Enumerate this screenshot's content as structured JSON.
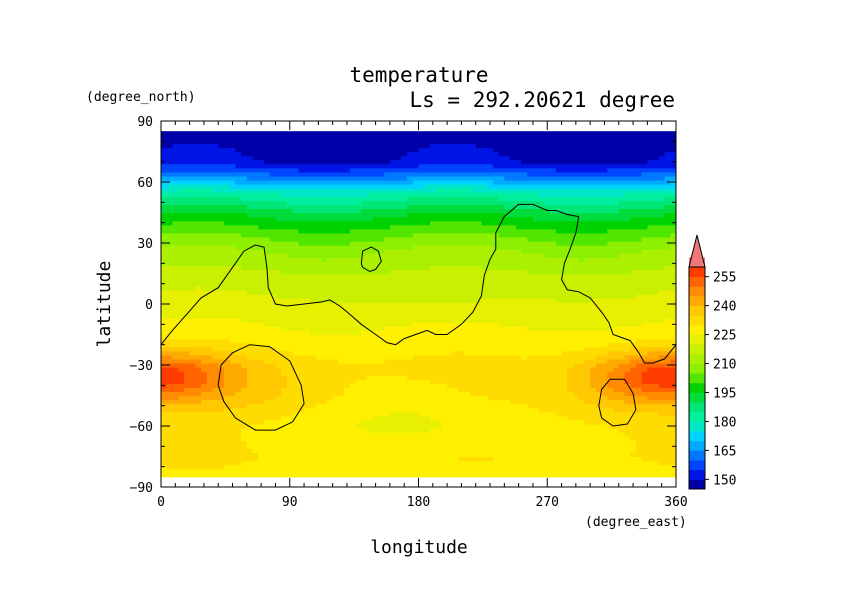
{
  "chart_data": {
    "type": "heatmap",
    "title": "temperature",
    "subtitle": "Ls = 292.20621 degree",
    "xlabel": "longitude",
    "ylabel": "latitude",
    "xunit": "(degree_east)",
    "yunit": "(degree_north)",
    "xlim": [
      0,
      360
    ],
    "ylim": [
      -90,
      90
    ],
    "x_ticks": [
      0,
      90,
      180,
      270,
      360
    ],
    "y_ticks": [
      90,
      60,
      30,
      0,
      -30,
      -60,
      -90
    ],
    "x_tick_labels": [
      "0",
      "90",
      "180",
      "270",
      "360"
    ],
    "y_tick_labels": [
      "90",
      "60",
      "30",
      "0",
      "−30",
      "−60",
      "−90"
    ],
    "data_lat_range": [
      -85,
      85
    ],
    "colorbar": {
      "levels": [
        145,
        150,
        155,
        160,
        165,
        170,
        175,
        180,
        185,
        190,
        195,
        200,
        205,
        210,
        215,
        220,
        225,
        230,
        235,
        240,
        245,
        250,
        255,
        260
      ],
      "labels": [
        "150",
        "165",
        "180",
        "195",
        "210",
        "225",
        "240",
        "255"
      ],
      "label_values": [
        150,
        165,
        180,
        195,
        210,
        225,
        240,
        255
      ],
      "colors": [
        "#0000a8",
        "#0014e6",
        "#0046ff",
        "#0078ff",
        "#00aaff",
        "#00d2ff",
        "#00e6c8",
        "#00f0a0",
        "#00e678",
        "#00dc3c",
        "#00d200",
        "#50e600",
        "#8cf000",
        "#aaf000",
        "#c8f000",
        "#e6f000",
        "#fff000",
        "#ffdc00",
        "#ffc800",
        "#ffaa00",
        "#ff8c00",
        "#ff6400",
        "#ff3c00",
        "#f07878"
      ],
      "extend": "max"
    },
    "field_model": {
      "latitudes": [
        -85,
        -75,
        -60,
        -45,
        -30,
        -15,
        0,
        15,
        25,
        35,
        45,
        55,
        62,
        70,
        85
      ],
      "temperatures": [
        228,
        230,
        228,
        231,
        231,
        226,
        222,
        216,
        211,
        203,
        193,
        180,
        164,
        150,
        146
      ],
      "hot_spots": [
        {
          "lon": 10,
          "lat": -35,
          "amp": 13,
          "dlon": 45,
          "dlat": 12
        },
        {
          "lon": 340,
          "lat": -35,
          "amp": 13,
          "dlon": 45,
          "dlat": 12
        },
        {
          "lon": 60,
          "lat": -40,
          "amp": 5,
          "dlon": 60,
          "dlat": 18
        },
        {
          "lon": 320,
          "lat": -45,
          "amp": 5,
          "dlon": 50,
          "dlat": 20
        }
      ],
      "cool_spots": [
        {
          "lon": 180,
          "lat": -55,
          "amp": 5,
          "dlon": 55,
          "dlat": 18
        },
        {
          "lon": 200,
          "lat": 5,
          "amp": 3,
          "dlon": 50,
          "dlat": 10
        }
      ]
    },
    "topo_contours": [
      [
        [
          0,
          -20
        ],
        [
          8,
          -13
        ],
        [
          18,
          -5
        ],
        [
          28,
          3
        ],
        [
          40,
          8
        ],
        [
          50,
          18
        ],
        [
          58,
          26
        ],
        [
          66,
          29
        ],
        [
          72,
          28
        ],
        [
          74,
          18
        ],
        [
          75,
          8
        ],
        [
          80,
          0
        ],
        [
          88,
          -1
        ],
        [
          100,
          0
        ],
        [
          112,
          1
        ],
        [
          118,
          2
        ],
        [
          125,
          -1
        ],
        [
          132,
          -5
        ],
        [
          140,
          -10
        ],
        [
          150,
          -15
        ],
        [
          158,
          -19
        ],
        [
          164,
          -20
        ],
        [
          170,
          -17
        ],
        [
          178,
          -15
        ],
        [
          186,
          -13
        ],
        [
          192,
          -15
        ],
        [
          200,
          -15
        ],
        [
          210,
          -10
        ],
        [
          218,
          -4
        ],
        [
          224,
          4
        ],
        [
          226,
          14
        ],
        [
          230,
          22
        ],
        [
          234,
          27
        ],
        [
          234,
          35
        ],
        [
          240,
          43
        ],
        [
          250,
          49
        ],
        [
          260,
          49
        ],
        [
          270,
          46
        ],
        [
          276,
          46
        ],
        [
          284,
          44
        ],
        [
          292,
          43
        ],
        [
          290,
          35
        ],
        [
          286,
          27
        ],
        [
          282,
          20
        ],
        [
          280,
          12
        ],
        [
          284,
          7
        ],
        [
          292,
          6
        ],
        [
          300,
          3
        ],
        [
          308,
          -4
        ],
        [
          313,
          -9
        ],
        [
          316,
          -15
        ],
        [
          320,
          -16
        ],
        [
          328,
          -18
        ],
        [
          334,
          -24
        ],
        [
          338,
          -29
        ],
        [
          344,
          -29
        ],
        [
          352,
          -27
        ],
        [
          360,
          -20
        ]
      ],
      [
        [
          140,
          20
        ],
        [
          141,
          26
        ],
        [
          147,
          28
        ],
        [
          152,
          26
        ],
        [
          154,
          21
        ],
        [
          150,
          17
        ],
        [
          146,
          16
        ],
        [
          141,
          18
        ],
        [
          140,
          20
        ]
      ],
      [
        [
          40,
          -40
        ],
        [
          42,
          -30
        ],
        [
          50,
          -24
        ],
        [
          62,
          -20
        ],
        [
          76,
          -21
        ],
        [
          90,
          -28
        ],
        [
          98,
          -40
        ],
        [
          100,
          -49
        ],
        [
          92,
          -58
        ],
        [
          80,
          -62
        ],
        [
          66,
          -62
        ],
        [
          52,
          -56
        ],
        [
          44,
          -48
        ],
        [
          40,
          -40
        ]
      ],
      [
        [
          306,
          -50
        ],
        [
          308,
          -42
        ],
        [
          314,
          -37
        ],
        [
          324,
          -37
        ],
        [
          330,
          -44
        ],
        [
          332,
          -52
        ],
        [
          326,
          -59
        ],
        [
          316,
          -60
        ],
        [
          308,
          -56
        ],
        [
          306,
          -50
        ]
      ]
    ]
  }
}
